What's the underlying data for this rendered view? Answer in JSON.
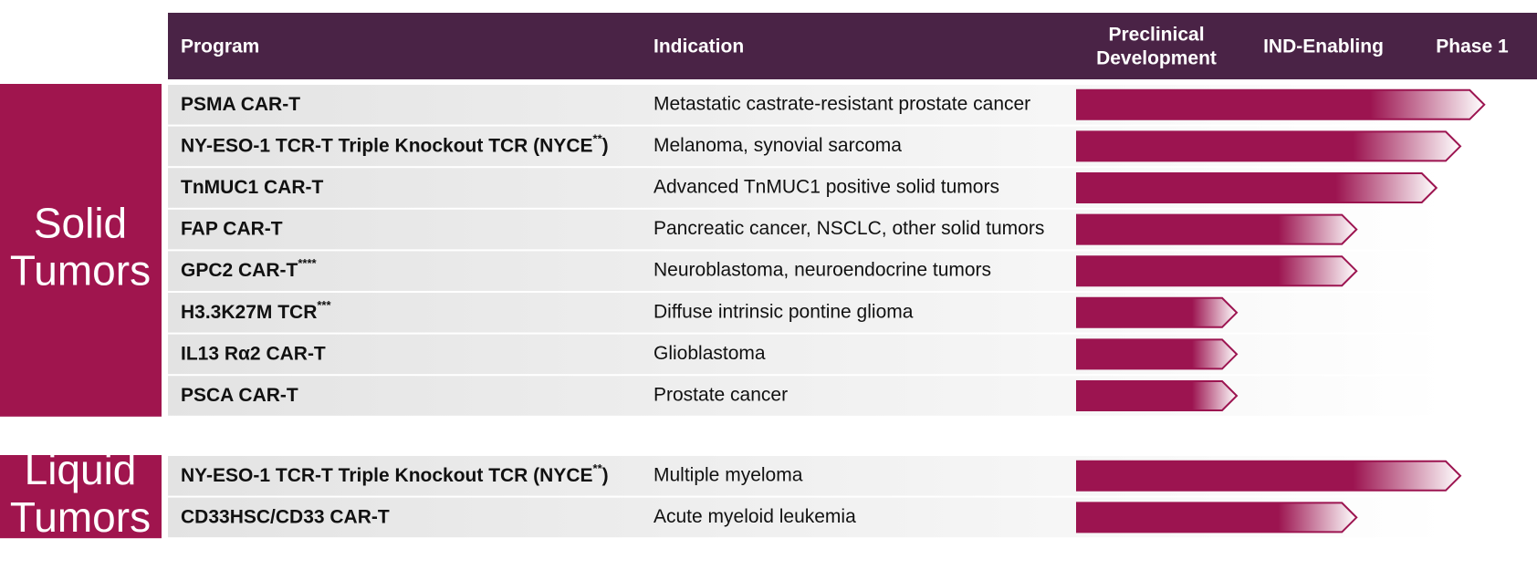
{
  "header": {
    "program": "Program",
    "indication": "Indication",
    "stages": [
      [
        "Preclinical",
        "Development"
      ],
      [
        "IND-Enabling"
      ],
      [
        "Phase 1"
      ]
    ]
  },
  "groups": [
    {
      "label": [
        "Solid",
        "Tumors"
      ],
      "rows": [
        {
          "program": "PSMA CAR-T",
          "indication": "Metastatic castrate-resistant prostate cancer",
          "progress": 2.55
        },
        {
          "program": "NY-ESO-1 TCR-T Triple Knockout TCR (NYCE",
          "note": "**",
          "program_end": ")",
          "indication": "Melanoma, synovial sarcoma",
          "progress": 2.4
        },
        {
          "program": "TnMUC1 CAR-T",
          "indication": "Advanced TnMUC1 positive solid tumors",
          "progress": 2.25
        },
        {
          "program": "FAP CAR-T",
          "indication": "Pancreatic cancer, NSCLC, other solid tumors",
          "progress": 1.75
        },
        {
          "program": "GPC2 CAR-T",
          "note": "****",
          "indication": "Neuroblastoma, neuroendocrine tumors",
          "progress": 1.75
        },
        {
          "program": "H3.3K27M TCR",
          "note": "***",
          "indication": "Diffuse intrinsic pontine glioma",
          "progress": 1.0
        },
        {
          "program": "IL13 Rα2 CAR-T",
          "indication": "Glioblastoma",
          "progress": 1.0
        },
        {
          "program": "PSCA CAR-T",
          "indication": "Prostate cancer",
          "progress": 1.0
        }
      ]
    },
    {
      "label": [
        "Liquid",
        "Tumors"
      ],
      "rows": [
        {
          "program": "NY-ESO-1 TCR-T Triple Knockout TCR (NYCE",
          "note": "**",
          "program_end": ")",
          "indication": "Multiple myeloma",
          "progress": 2.4
        },
        {
          "program": "CD33HSC/CD33 CAR-T",
          "indication": "Acute myeloid leukemia",
          "progress": 1.75
        }
      ]
    }
  ]
}
